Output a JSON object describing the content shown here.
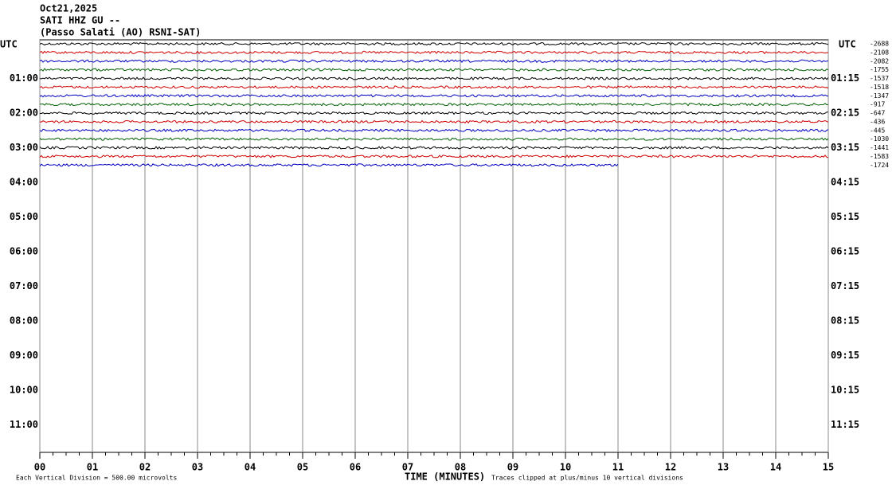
{
  "chart_data": {
    "type": "helicorder",
    "header": [
      "Oct21,2025",
      "SATI HHZ GU --",
      "(Passo Salati (AO) RSNI-SAT)"
    ],
    "time_zone_label": "UTC",
    "left_labels": [
      "01:00",
      "02:00",
      "03:00",
      "04:00",
      "05:00",
      "06:00",
      "07:00",
      "08:00",
      "09:00",
      "10:00",
      "11:00"
    ],
    "right_labels": [
      "01:15",
      "02:15",
      "03:15",
      "04:15",
      "05:15",
      "06:15",
      "07:15",
      "08:15",
      "09:15",
      "10:15",
      "11:15"
    ],
    "traces": [
      {
        "offset_label": "-2688",
        "color": "#000000"
      },
      {
        "offset_label": "-2108",
        "color": "#d00000"
      },
      {
        "offset_label": "-2082",
        "color": "#0000c0"
      },
      {
        "offset_label": "-1755",
        "color": "#006000"
      },
      {
        "offset_label": "-1537",
        "color": "#000000"
      },
      {
        "offset_label": "-1518",
        "color": "#d00000"
      },
      {
        "offset_label": "-1347",
        "color": "#0000c0"
      },
      {
        "offset_label": "-917",
        "color": "#006000"
      },
      {
        "offset_label": "-647",
        "color": "#000000"
      },
      {
        "offset_label": "-436",
        "color": "#d00000"
      },
      {
        "offset_label": "-445",
        "color": "#0000c0"
      },
      {
        "offset_label": "-1030",
        "color": "#006000"
      },
      {
        "offset_label": "-1441",
        "color": "#000000"
      },
      {
        "offset_label": "-1583",
        "color": "#d00000"
      },
      {
        "offset_label": "-1724",
        "color": "#0000c0",
        "end": 11
      }
    ],
    "xlim": [
      0,
      15
    ],
    "xticks": [
      {
        "value": 0,
        "label": "00"
      },
      {
        "value": 1,
        "label": "01"
      },
      {
        "value": 2,
        "label": "02"
      },
      {
        "value": 3,
        "label": "03"
      },
      {
        "value": 4,
        "label": "04"
      },
      {
        "value": 5,
        "label": "05"
      },
      {
        "value": 6,
        "label": "06"
      },
      {
        "value": 7,
        "label": "07"
      },
      {
        "value": 8,
        "label": "08"
      },
      {
        "value": 9,
        "label": "09"
      },
      {
        "value": 10,
        "label": "10"
      },
      {
        "value": 11,
        "label": "11"
      },
      {
        "value": 12,
        "label": "12"
      },
      {
        "value": 13,
        "label": "13"
      },
      {
        "value": 14,
        "label": "14"
      },
      {
        "value": 15,
        "label": "15"
      }
    ],
    "x_label": "TIME (MINUTES)",
    "scale_note": "Each Vertical Division =  500.00 microvolts",
    "clip_note": "Traces clipped at plus/minus 10 vertical divisions",
    "grid": true
  }
}
